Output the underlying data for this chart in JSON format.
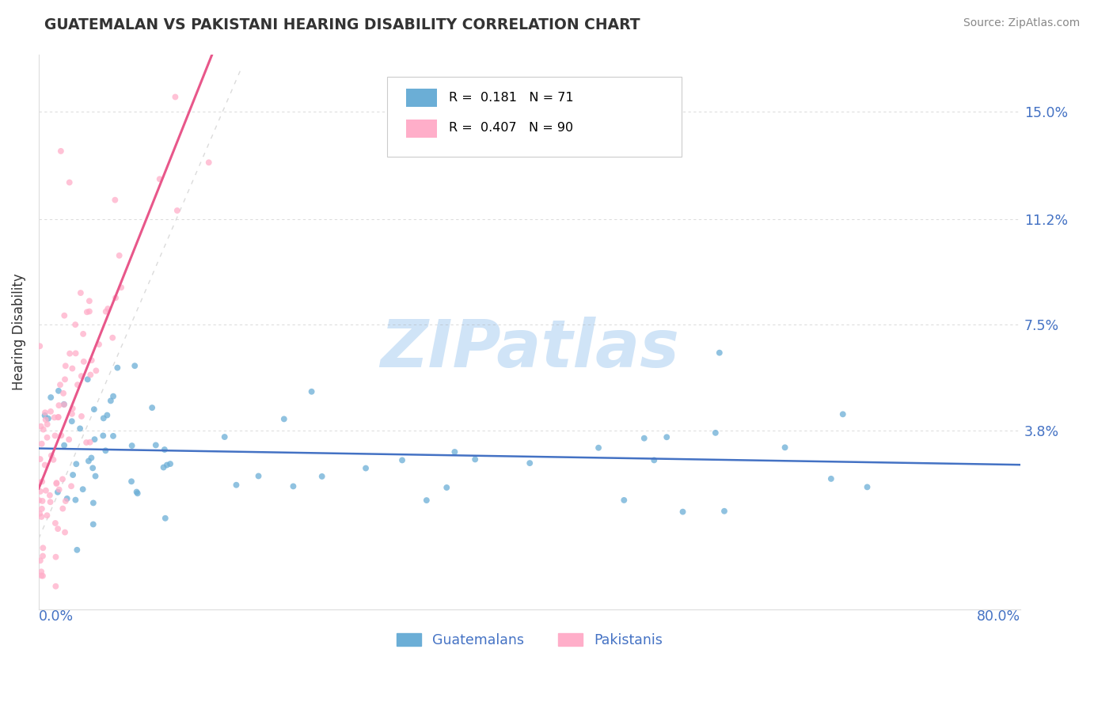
{
  "title": "GUATEMALAN VS PAKISTANI HEARING DISABILITY CORRELATION CHART",
  "source": "Source: ZipAtlas.com",
  "ylabel": "Hearing Disability",
  "xlim": [
    0.0,
    0.8
  ],
  "ylim": [
    -0.025,
    0.17
  ],
  "ytick_vals": [
    0.038,
    0.075,
    0.112,
    0.15
  ],
  "ytick_labels": [
    "3.8%",
    "7.5%",
    "11.2%",
    "15.0%"
  ],
  "xtick_left_label": "0.0%",
  "xtick_right_label": "80.0%",
  "legend_r1": "R =  0.181",
  "legend_n1": "N = 71",
  "legend_r2": "R =  0.407",
  "legend_n2": "N = 90",
  "guat_color": "#6baed6",
  "pak_color": "#ffaec9",
  "line_guat_color": "#4472c4",
  "line_pak_color": "#e8578a",
  "watermark": "ZIPatlas",
  "watermark_color": "#d0e4f7",
  "axis_color": "#4472c4",
  "title_color": "#333333",
  "source_color": "#888888",
  "grid_color": "#aaaaaa",
  "legend_label1": "Guatemalans",
  "legend_label2": "Pakistanis"
}
